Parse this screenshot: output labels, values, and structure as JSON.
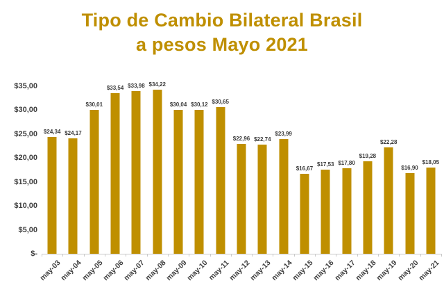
{
  "title": {
    "line1": "Tipo de Cambio Bilateral Brasil",
    "line2": "a pesos Mayo 2021"
  },
  "chart_data": {
    "type": "bar",
    "title": "Tipo de Cambio Bilateral Brasil a pesos Mayo 2021",
    "categories": [
      "may-03",
      "may-04",
      "may-05",
      "may-06",
      "may-07",
      "may-08",
      "may-09",
      "may-10",
      "may-11",
      "may-12",
      "may-13",
      "may-14",
      "may-15",
      "may-16",
      "may-17",
      "may-18",
      "may-19",
      "may-20",
      "may-21"
    ],
    "values": [
      24.34,
      24.17,
      30.01,
      33.54,
      33.98,
      34.22,
      30.04,
      30.12,
      30.65,
      22.96,
      22.74,
      23.99,
      16.67,
      17.53,
      17.8,
      19.28,
      22.28,
      16.9,
      18.05
    ],
    "value_labels": [
      "$24,34",
      "$24,17",
      "$30,01",
      "$33,54",
      "$33,98",
      "$34,22",
      "$30,04",
      "$30,12",
      "$30,65",
      "$22,96",
      "$22,74",
      "$23,99",
      "$16,67",
      "$17,53",
      "$17,80",
      "$19,28",
      "$22,28",
      "$16,90",
      "$18,05"
    ],
    "y_tick_labels": [
      "$35,00",
      "$30,00",
      "$25,00",
      "$20,00",
      "$15,00",
      "$10,00",
      "$5,00",
      "$-"
    ],
    "y_tick_values": [
      35,
      30,
      25,
      20,
      15,
      10,
      5,
      0
    ],
    "ylim": [
      0,
      35
    ],
    "grid": false,
    "legend": false,
    "xlabel": "",
    "ylabel": ""
  },
  "colors": {
    "bar": "#BF8F00",
    "title": "#BF8F00",
    "axis_line": "#c9c9c9",
    "axis_text": "#3f3f3f",
    "value_label_text": "#3a3a3a",
    "background": "#ffffff"
  }
}
